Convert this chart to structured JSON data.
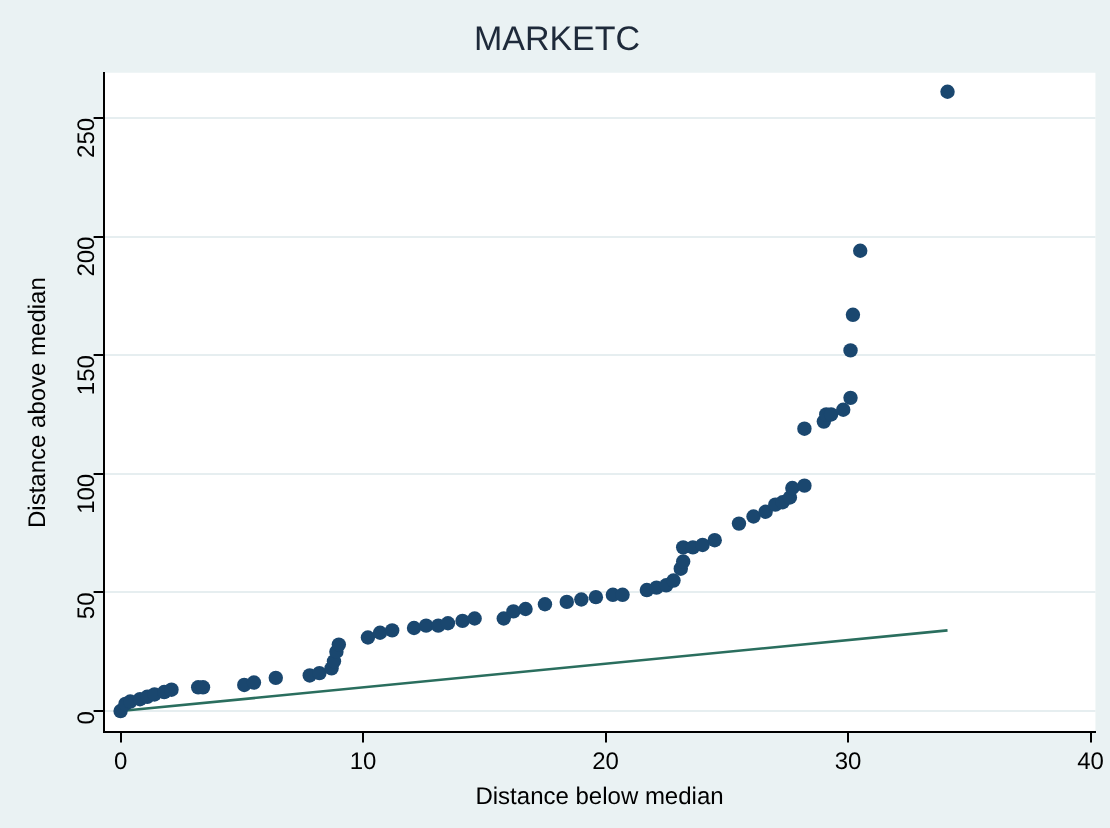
{
  "chart_data": {
    "type": "scatter",
    "title": "MARKETC",
    "xlabel": "Distance below median",
    "ylabel": "Distance above median",
    "xlim": [
      -0.7,
      40.2
    ],
    "ylim": [
      -9,
      269
    ],
    "xticks": [
      0,
      10,
      20,
      30,
      40
    ],
    "yticks": [
      0,
      50,
      100,
      150,
      200,
      250
    ],
    "grid": "y",
    "legend": false,
    "marker": "circle",
    "series": [
      {
        "color": "#1a476f",
        "x": [
          0,
          0.2,
          0.4,
          0.8,
          1.1,
          1.4,
          1.8,
          2.1,
          3.2,
          3.4,
          5.1,
          5.5,
          6.4,
          7.8,
          8.2,
          8.7,
          8.8,
          8.9,
          9,
          10.2,
          10.7,
          11.2,
          12.1,
          12.6,
          13.1,
          13.5,
          14.1,
          14.6,
          15.8,
          16.2,
          16.7,
          17.5,
          18.4,
          19,
          19.6,
          20.3,
          20.7,
          21.7,
          22.1,
          22.5,
          22.8,
          23.1,
          23.2,
          23.2,
          23.6,
          24,
          24.5,
          25.5,
          26.1,
          26.6,
          27,
          27.3,
          27.6,
          27.7,
          28.2,
          28.2,
          29,
          29.1,
          29.3,
          29.8,
          30.1,
          30.1,
          30.2,
          30.5,
          34.1
        ],
        "values": [
          0,
          3,
          4,
          5,
          6,
          7,
          8,
          9,
          10,
          10,
          11,
          12,
          14,
          15,
          16,
          18,
          21,
          25,
          28,
          31,
          33,
          34,
          35,
          36,
          36,
          37,
          38,
          39,
          39,
          42,
          43,
          45,
          46,
          47,
          48,
          49,
          49,
          51,
          52,
          53,
          55,
          60,
          63,
          69,
          69,
          70,
          72,
          79,
          82,
          84,
          87,
          88,
          90,
          94,
          95,
          119,
          122,
          125,
          125,
          127,
          132,
          152,
          167,
          194,
          261
        ]
      },
      {
        "type": "line",
        "color": "#2a6e5e",
        "marker": "none",
        "x": [
          0,
          34.1
        ],
        "values": [
          0,
          34
        ]
      }
    ]
  }
}
